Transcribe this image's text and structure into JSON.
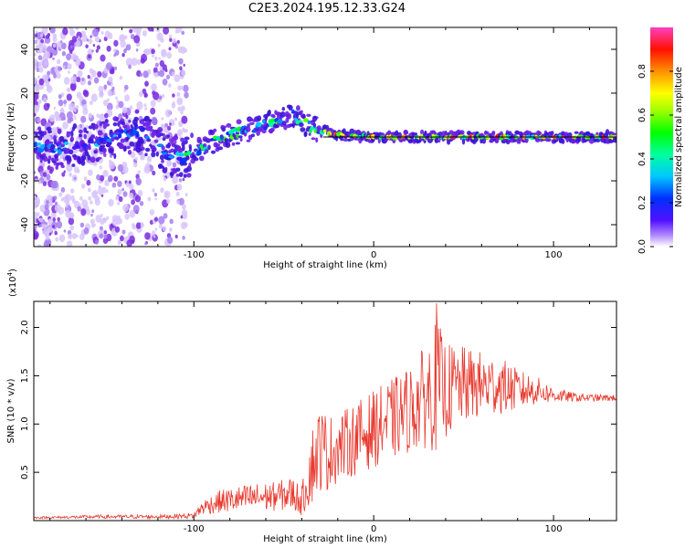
{
  "title": "C2E3.2024.195.12.33.G24",
  "chart_data": [
    {
      "type": "heatmap",
      "name": "spectrogram",
      "xlabel": "Height of straight line (km)",
      "ylabel": "Frequency (Hz)",
      "xlim": [
        -189,
        135
      ],
      "ylim": [
        -50,
        50
      ],
      "xticks": [
        -100,
        0,
        100
      ],
      "xtick_labels": [
        "-100",
        "0",
        "100"
      ],
      "yticks": [
        -40,
        -20,
        0,
        20,
        40
      ],
      "ytick_labels": [
        "-40",
        "-20",
        "0",
        "20",
        "40"
      ],
      "colorbar": {
        "label": "Normalized spectral amplitude",
        "range": [
          0.0,
          1.0
        ],
        "ticks": [
          0.0,
          0.2,
          0.4,
          0.6,
          0.8
        ],
        "tick_labels": [
          "0.0",
          "0.2",
          "0.4",
          "0.6",
          "0.8"
        ]
      },
      "ridge": {
        "x": [
          -175,
          -160,
          -145,
          -130,
          -115,
          -105,
          -95,
          -85,
          -70,
          -55,
          -45,
          -38,
          -30,
          -20,
          0,
          20,
          40,
          60,
          80,
          100,
          135
        ],
        "freq": [
          -5,
          -3,
          0,
          3,
          -8,
          -10,
          -5,
          0,
          3,
          7,
          10,
          6,
          3,
          1,
          0,
          0,
          0,
          0,
          0,
          0,
          0
        ]
      }
    },
    {
      "type": "line",
      "name": "snr",
      "xlabel": "Height of straight line (km)",
      "ylabel": "SNR (10 * v/v)",
      "scale_label": "(x10",
      "scale_exp": "4",
      "scale_close": ")",
      "xlim": [
        -189,
        135
      ],
      "ylim": [
        0,
        2.27
      ],
      "xticks": [
        -100,
        0,
        100
      ],
      "xtick_labels": [
        "-100",
        "0",
        "100"
      ],
      "yticks": [
        0.5,
        1.0,
        1.5,
        2.0
      ],
      "ytick_labels": [
        "0.5",
        "1.0",
        "1.5",
        "2.0"
      ],
      "series_color": "#e8392e",
      "envelope": {
        "x": [
          -189,
          -150,
          -120,
          -100,
          -95,
          -85,
          -75,
          -65,
          -55,
          -45,
          -40,
          -35,
          -30,
          -25,
          -20,
          -10,
          0,
          10,
          20,
          30,
          35,
          40,
          50,
          60,
          70,
          80,
          90,
          100,
          110,
          120,
          135
        ],
        "mean": [
          0.03,
          0.04,
          0.04,
          0.05,
          0.14,
          0.2,
          0.22,
          0.24,
          0.25,
          0.28,
          0.2,
          0.55,
          0.75,
          0.7,
          0.75,
          0.85,
          0.95,
          1.05,
          1.15,
          1.3,
          1.4,
          1.35,
          1.4,
          1.4,
          1.4,
          1.35,
          1.35,
          1.3,
          1.28,
          1.27,
          1.27
        ],
        "amp": [
          0.01,
          0.02,
          0.02,
          0.03,
          0.08,
          0.12,
          0.14,
          0.15,
          0.15,
          0.18,
          0.15,
          0.4,
          0.45,
          0.4,
          0.35,
          0.38,
          0.4,
          0.42,
          0.45,
          0.55,
          0.7,
          0.5,
          0.4,
          0.35,
          0.3,
          0.22,
          0.15,
          0.08,
          0.05,
          0.04,
          0.03
        ]
      },
      "peak": {
        "x": 35,
        "y": 2.25
      }
    }
  ],
  "colors": {
    "scatter_violet": "#7a2be0",
    "ridge_black": "#000000",
    "axis": "#000000"
  }
}
